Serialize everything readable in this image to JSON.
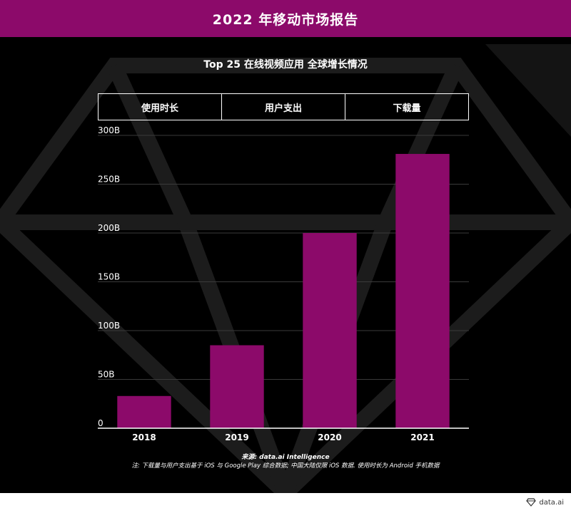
{
  "header": {
    "title": "2022 年移动市场报告"
  },
  "chart_data": {
    "type": "bar",
    "title": "Top 25 在线视频应用 全球增长情况",
    "tabs": [
      "使用时长",
      "用户支出",
      "下载量"
    ],
    "categories": [
      "2018",
      "2019",
      "2020",
      "2021"
    ],
    "values": [
      33,
      85,
      200,
      281
    ],
    "yticks": [
      "0",
      "50B",
      "100B",
      "150B",
      "200B",
      "250B",
      "300B"
    ],
    "ylim": [
      0,
      300
    ],
    "bar_color": "#8c0a6a",
    "grid": true
  },
  "footer": {
    "source": "来源: data.ai Intelligence",
    "note": "注: 下载量与用户支出基于 iOS 与 Google Play 综合数据; 中国大陆仅限 iOS 数据. 使用时长为 Android 手机数据",
    "brand": "data.ai",
    "brand_icon": "diamond-logo-icon"
  },
  "colors": {
    "accent": "#8c0a6a",
    "background": "#000000"
  }
}
